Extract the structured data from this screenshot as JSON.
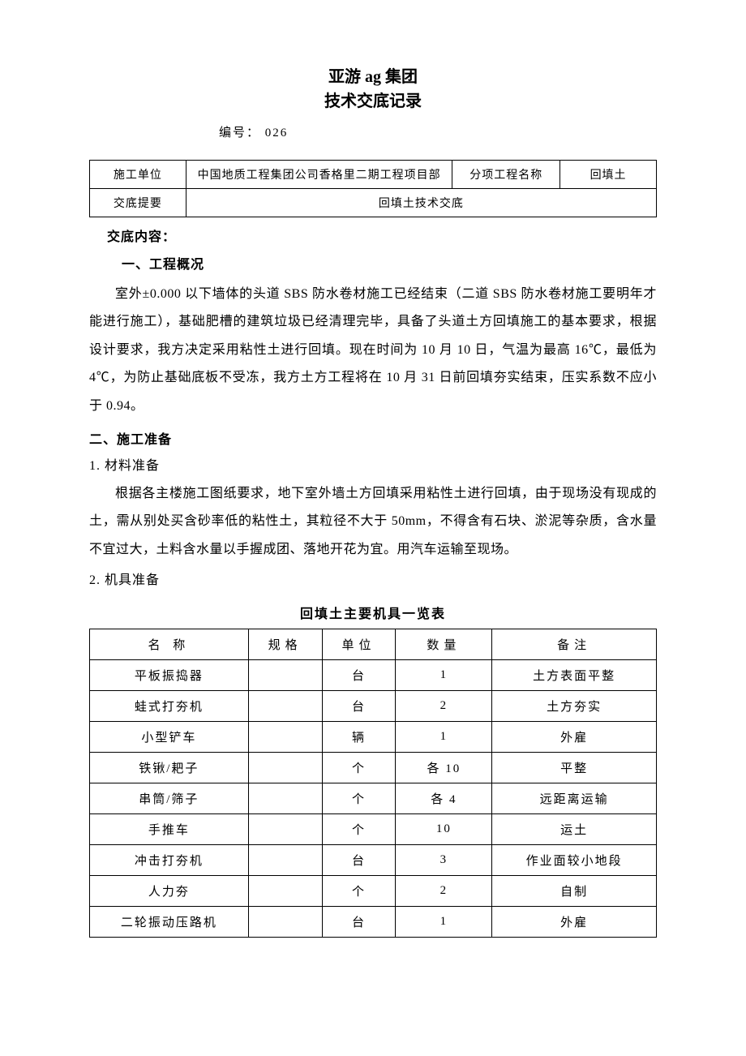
{
  "title": {
    "line1": "亚游 ag 集团",
    "line2": "技术交底记录"
  },
  "doc_number_label": "编号：",
  "doc_number": "026",
  "header_table": {
    "r1c1": "施工单位",
    "r1c2": "中国地质工程集团公司香格里二期工程项目部",
    "r1c3": "分项工程名称",
    "r1c4": "回填土",
    "r2c1": "交底提要",
    "r2c2": "回填土技术交底"
  },
  "sections": {
    "content_heading": "交底内容：",
    "s1_heading": "一、工程概况",
    "s1_body": "室外±0.000 以下墙体的头道 SBS 防水卷材施工已经结束（二道 SBS 防水卷材施工要明年才能进行施工），基础肥槽的建筑垃圾已经清理完毕，具备了头道土方回填施工的基本要求，根据设计要求，我方决定采用粘性土进行回填。现在时间为 10 月 10 日，气温为最高 16℃，最低为 4℃，为防止基础底板不受冻，我方土方工程将在 10 月 31 日前回填夯实结束，压实系数不应小于 0.94。",
    "s2_heading": "二、施工准备",
    "s2_1_heading": "1. 材料准备",
    "s2_1_body": "根据各主楼施工图纸要求，地下室外墙土方回填采用粘性土进行回填，由于现场没有现成的土，需从别处买含砂率低的粘性土，其粒径不大于 50mm，不得含有石块、淤泥等杂质，含水量不宜过大，土料含水量以手握成团、落地开花为宜。用汽车运输至现场。",
    "s2_2_heading": "2. 机具准备"
  },
  "tool_table": {
    "title": "回填土主要机具一览表",
    "columns": {
      "name": "名 称",
      "spec": "规格",
      "unit": "单位",
      "qty": "数量",
      "note": "备注"
    },
    "rows": [
      {
        "name": "平板振捣器",
        "spec": "",
        "unit": "台",
        "qty": "1",
        "note": "土方表面平整"
      },
      {
        "name": "蛙式打夯机",
        "spec": "",
        "unit": "台",
        "qty": "2",
        "note": "土方夯实"
      },
      {
        "name": "小型铲车",
        "spec": "",
        "unit": "辆",
        "qty": "1",
        "note": "外雇"
      },
      {
        "name": "铁锹/耙子",
        "spec": "",
        "unit": "个",
        "qty": "各 10",
        "note": "平整"
      },
      {
        "name": "串筒/筛子",
        "spec": "",
        "unit": "个",
        "qty": "各 4",
        "note": "远距离运输"
      },
      {
        "name": "手推车",
        "spec": "",
        "unit": "个",
        "qty": "10",
        "note": "运土"
      },
      {
        "name": "冲击打夯机",
        "spec": "",
        "unit": "台",
        "qty": "3",
        "note": "作业面较小地段"
      },
      {
        "name": "人力夯",
        "spec": "",
        "unit": "个",
        "qty": "2",
        "note": "自制"
      },
      {
        "name": "二轮振动压路机",
        "spec": "",
        "unit": "台",
        "qty": "1",
        "note": "外雇"
      }
    ]
  },
  "layout": {
    "page_bg": "#ffffff",
    "text_color": "#000000",
    "border_color": "#000000",
    "header_col_widths": [
      "17%",
      "47%",
      "19%",
      "17%"
    ],
    "tool_col_widths": [
      "28%",
      "13%",
      "13%",
      "17%",
      "29%"
    ]
  }
}
